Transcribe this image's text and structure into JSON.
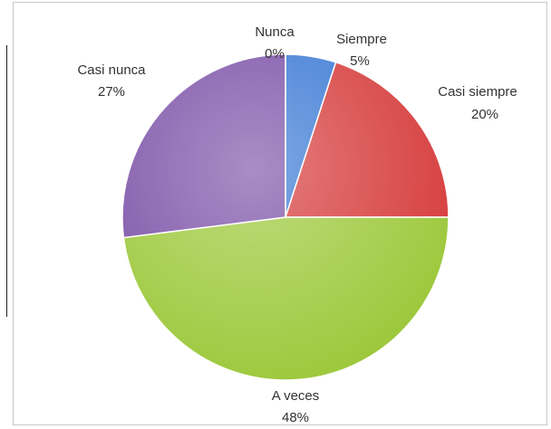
{
  "chart_data": {
    "type": "pie",
    "title": "",
    "slices": [
      {
        "label": "Nunca",
        "value_text": "0%",
        "value": 0,
        "color": "#3a78d4"
      },
      {
        "label": "Siempre",
        "value_text": "5%",
        "value": 5,
        "color": "#3a78d4"
      },
      {
        "label": "Casi siempre",
        "value_text": "20%",
        "value": 20,
        "color": "#d63a3a"
      },
      {
        "label": "A veces",
        "value_text": "48%",
        "value": 48,
        "color": "#9cc83a"
      },
      {
        "label": "Casi nunca",
        "value_text": "27%",
        "value": 27,
        "color": "#7a4fa6"
      }
    ],
    "legend": "none"
  }
}
